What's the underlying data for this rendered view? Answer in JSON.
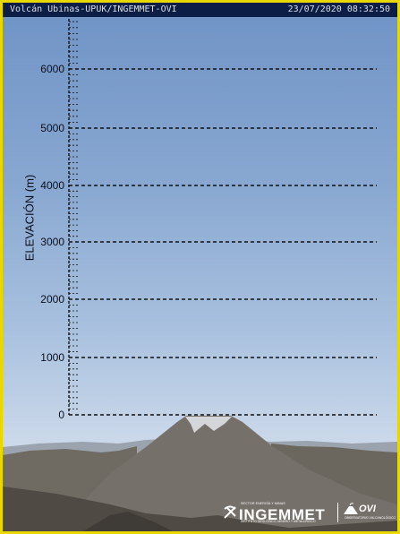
{
  "header": {
    "camera_label": "Volcán Ubinas-UPUK/INGEMMET-OVI",
    "timestamp": "23/07/2020 08:32:50"
  },
  "scale": {
    "axis_label": "ELEVACIÓN (m)",
    "ticks": [
      {
        "label": "0",
        "elevation": 0
      },
      {
        "label": "1000",
        "elevation": 1000
      },
      {
        "label": "2000",
        "elevation": 2000
      },
      {
        "label": "3000",
        "elevation": 3000
      },
      {
        "label": "4000",
        "elevation": 4000
      },
      {
        "label": "5000",
        "elevation": 5000
      },
      {
        "label": "6000",
        "elevation": 6000
      }
    ]
  },
  "logos": {
    "ingemmet_name": "INGEMMET",
    "ingemmet_subtitle": "SECTOR ENERGÍA Y MINAS",
    "ingemmet_desc": "INSTITUTO GEOLÓGICO, MINERO Y METALÚRGICO",
    "ovi_name": "OVI",
    "ovi_desc": "OBSERVATORIO VULCANOLÓGICO"
  },
  "colors": {
    "border": "#e8d800",
    "header_bg": "#0c1e46",
    "scale_lines": "#111111"
  }
}
